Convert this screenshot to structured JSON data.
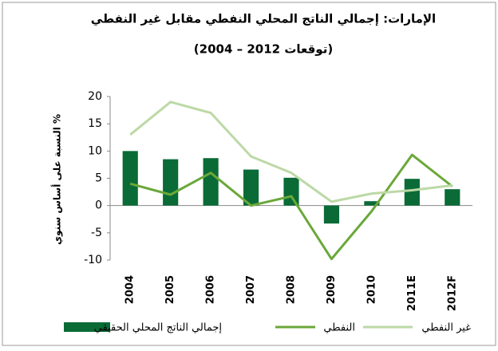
{
  "chart_data": {
    "type": "bar",
    "title": "الإمارات: إجمالي الناتج المحلي النفطي مقابل غير النفطي",
    "subtitle": "(2004 – توقعات 2012)",
    "y_label": "النسبة على أساس سنوي %",
    "categories": [
      "2004",
      "2005",
      "2006",
      "2007",
      "2008",
      "2009",
      "2010",
      "2011E",
      "2012F"
    ],
    "series": [
      {
        "name": "إجمالي الناتج المحلي الحقيقي",
        "type": "bar",
        "color": "#0a6b36",
        "values": [
          10,
          8.5,
          8.7,
          6.6,
          5.1,
          -3.3,
          0.8,
          4.9,
          3.0
        ]
      },
      {
        "name": "النفطي",
        "type": "line",
        "color": "#6aa83a",
        "values": [
          4,
          2,
          6,
          0,
          1.7,
          -9.8,
          -1,
          9.3,
          3.5
        ]
      },
      {
        "name": "غير النفطي",
        "type": "line",
        "color": "#bcd9a6",
        "values": [
          13,
          19,
          17,
          9,
          6,
          0.7,
          2.2,
          2.8,
          3.7
        ]
      }
    ],
    "ylim": [
      -10,
      20
    ],
    "yticks": [
      -10,
      -5,
      0,
      5,
      10,
      15,
      20
    ],
    "grid": false
  }
}
